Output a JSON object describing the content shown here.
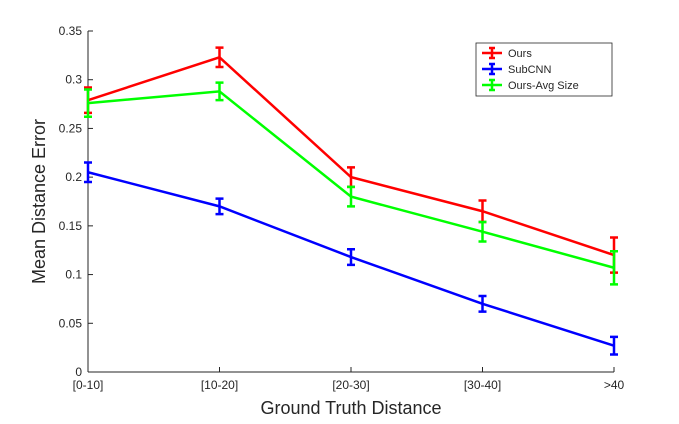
{
  "chart_data": {
    "type": "line",
    "title": "",
    "xlabel": "Ground Truth Distance",
    "ylabel": "Mean Distance Error",
    "categories": [
      "[0-10]",
      "[10-20]",
      "[20-30]",
      "[30-40]",
      ">40"
    ],
    "ylim": [
      0,
      0.35
    ],
    "yticks": [
      0,
      0.05,
      0.1,
      0.15,
      0.2,
      0.25,
      0.3,
      0.35
    ],
    "ytick_labels": [
      "0",
      "0.05",
      "0.1",
      "0.15",
      "0.2",
      "0.25",
      "0.3",
      "0.35"
    ],
    "grid": false,
    "legend_position": "top-right",
    "series": [
      {
        "name": "Ours",
        "color": "#ff0000",
        "values": [
          0.279,
          0.323,
          0.2,
          0.165,
          0.12
        ],
        "errors": [
          0.013,
          0.01,
          0.01,
          0.011,
          0.018
        ]
      },
      {
        "name": "SubCNN",
        "color": "#0000ff",
        "values": [
          0.205,
          0.17,
          0.118,
          0.07,
          0.027
        ],
        "errors": [
          0.01,
          0.008,
          0.008,
          0.008,
          0.009
        ]
      },
      {
        "name": "Ours-Avg Size",
        "color": "#00ff00",
        "values": [
          0.276,
          0.288,
          0.18,
          0.144,
          0.107
        ],
        "errors": [
          0.014,
          0.009,
          0.01,
          0.01,
          0.017
        ]
      }
    ]
  }
}
